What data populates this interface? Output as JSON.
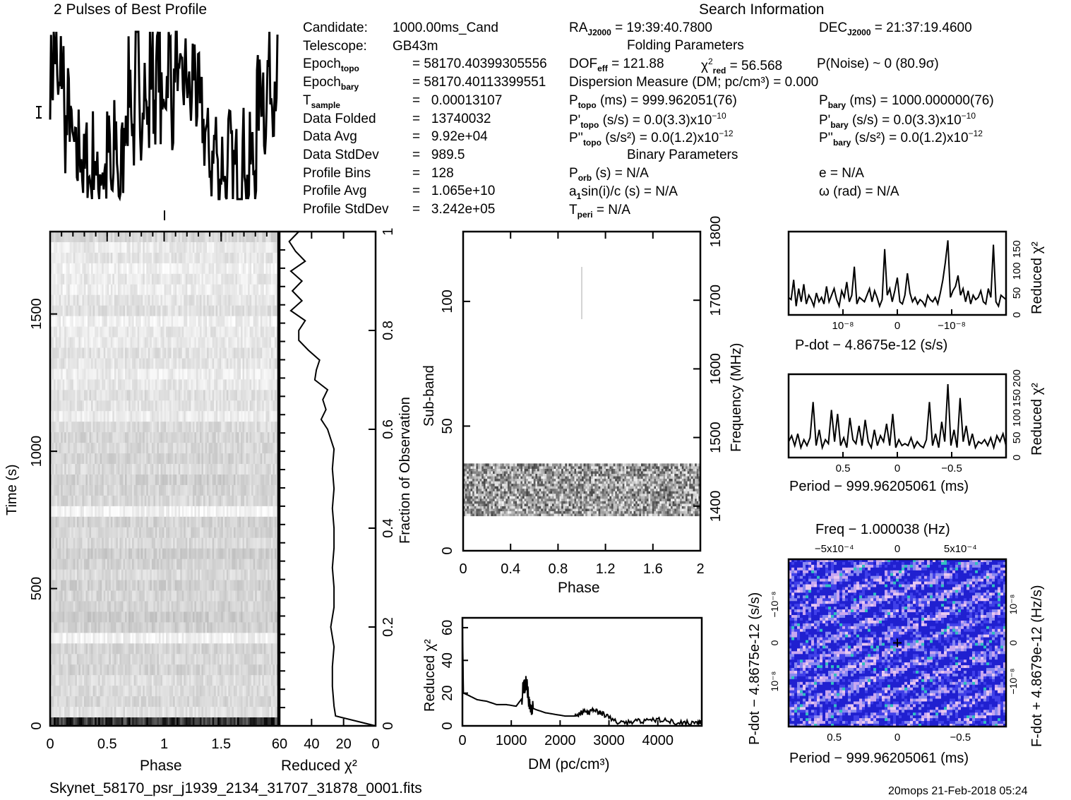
{
  "header": {
    "profile_title": "2 Pulses of Best Profile",
    "search_title": "Search Information",
    "folding_title": "Folding Parameters",
    "binary_title": "Binary Parameters"
  },
  "info_left": [
    {
      "label": "Candidate:",
      "sub": "",
      "value": "1000.00ms_Cand"
    },
    {
      "label": "Telescope:",
      "sub": "",
      "value": "GB43m"
    },
    {
      "label": "Epoch",
      "sub": "topo",
      "value": "= 58170.40399305556"
    },
    {
      "label": "Epoch",
      "sub": "bary",
      "value": "= 58170.40113399551"
    },
    {
      "label": "T",
      "sub": "sample",
      "value": "=   0.00013107"
    },
    {
      "label": "Data Folded",
      "sub": "",
      "value": "=   13740032"
    },
    {
      "label": "Data Avg",
      "sub": "",
      "value": "=   9.92e+04"
    },
    {
      "label": "Data StdDev",
      "sub": "",
      "value": "=   989.5"
    },
    {
      "label": "Profile Bins",
      "sub": "",
      "value": "=   128"
    },
    {
      "label": "Profile Avg",
      "sub": "",
      "value": "=   1.065e+10"
    },
    {
      "label": "Profile StdDev",
      "sub": "",
      "value": "=   3.242e+05"
    }
  ],
  "search_info": {
    "ra": {
      "label": "RA",
      "sub": "J2000",
      "value": "= 19:39:40.7800"
    },
    "dec": {
      "label": "DEC",
      "sub": "J2000",
      "value": "= 21:37:19.4600"
    }
  },
  "folding": {
    "dof": {
      "label": "DOF",
      "sub": "eff",
      "value": "= 121.88"
    },
    "chi2": {
      "label": "χ",
      "sup": "2",
      "sub": "red",
      "value": "= 56.568"
    },
    "noise": "P(Noise) ~ 0    (80.9σ)",
    "dm": "Dispersion Measure (DM; pc/cm³) = 0.000",
    "p_topo": {
      "label": "P",
      "sub": "topo",
      "value": "(ms) =  999.962051(76)"
    },
    "pd_topo": {
      "label": "P'",
      "sub": "topo",
      "value": "(s/s) = 0.0(3.3)x10",
      "exp": "−10"
    },
    "pdd_topo": {
      "label": "P''",
      "sub": "topo",
      "value": "(s/s²) = 0.0(1.2)x10",
      "exp": "−12"
    },
    "p_bary": {
      "label": "P",
      "sub": "bary",
      "value": "(ms) =  1000.000000(76)"
    },
    "pd_bary": {
      "label": "P'",
      "sub": "bary",
      "value": "(s/s) = 0.0(3.3)x10",
      "exp": "−10"
    },
    "pdd_bary": {
      "label": "P''",
      "sub": "bary",
      "value": "(s/s²) = 0.0(1.2)x10",
      "exp": "−12"
    }
  },
  "binary": {
    "porb": {
      "label": "P",
      "sub": "orb",
      "value": "(s) = N/A"
    },
    "asini": {
      "label": "a",
      "sub": "1",
      "value": "sin(i)/c (s) = N/A"
    },
    "tperi": {
      "label": "T",
      "sub": "peri",
      "value": "= N/A"
    },
    "e": "e = N/A",
    "omega": "ω (rad) = N/A"
  },
  "footer": {
    "filename": "Skynet_58170_psr_j1939_2134_31707_31878_0001.fits",
    "stamp": "20mops 21-Feb-2018 05:24"
  },
  "chart_data": [
    {
      "id": "profile",
      "type": "line",
      "title": "2 Pulses of Best Profile",
      "xlabel": "",
      "ylabel": "",
      "x_range": [
        0,
        2
      ],
      "description": "Noisy two-cycle pulse profile, high 0-0.1, low 0.1-0.5, high 0.5-1.0, repeated",
      "values": [
        0.75,
        0.9,
        0.6,
        0.8,
        0.4,
        0.55,
        0.3,
        0.2,
        0.35,
        0.15,
        0.25,
        0.1,
        0.3,
        0.05,
        0.2,
        0.15,
        0.3,
        0.05,
        0.35,
        0.1,
        0.25,
        0.55,
        0.7,
        0.4,
        0.85,
        0.5,
        0.75,
        0.45,
        0.8,
        0.6,
        0.9,
        0.5,
        0.7,
        0.85,
        0.55,
        0.9,
        0.6,
        0.7,
        0.75,
        0.55,
        0.8,
        0.6,
        0.5,
        0.4,
        0.3,
        0.2,
        0.35,
        0.1,
        0.25,
        0.05,
        0.3,
        0.15,
        0.2,
        0.1,
        0.3,
        0.05,
        0.25,
        0.2,
        0.6,
        0.7,
        0.5,
        0.8,
        0.65,
        0.75
      ]
    },
    {
      "id": "time-phase",
      "type": "heatmap",
      "xlabel": "Phase",
      "ylabel": "Time (s)",
      "x_ticks": [
        "0",
        "0.5",
        "1",
        "1.5"
      ],
      "y_ticks": [
        "0",
        "500",
        "1000",
        "1500"
      ],
      "x_range": [
        0,
        2
      ],
      "y_range": [
        0,
        1800
      ],
      "colormap": "grayscale",
      "row_shades": [
        0.15,
        0.08,
        0.1,
        0.06,
        0.09,
        0.07,
        0.1,
        0.12,
        0.06,
        0.09,
        0.08,
        0.11,
        0.1,
        0.07,
        0.09,
        0.12,
        0.1,
        0.08,
        0.14,
        0.16,
        0.15,
        0.17,
        0.14,
        0.18,
        0.16,
        0.15,
        0.05,
        0.17,
        0.16,
        0.15,
        0.19,
        0.17,
        0.14,
        0.18,
        0.16,
        0.17,
        0.2,
        0.18,
        0.05,
        0.16,
        0.15,
        0.17,
        0.13,
        0.14,
        0.15,
        0.12
      ]
    },
    {
      "id": "time-chi2",
      "type": "line",
      "xlabel": "Reduced χ²",
      "ylabel": "Fraction of Observation",
      "x_ticks": [
        "60",
        "40",
        "20",
        "0"
      ],
      "y_ticks": [
        "0",
        "0.2",
        "0.4",
        "0.6",
        "0.8",
        "1"
      ],
      "x_range": [
        60,
        0
      ],
      "y_range": [
        0,
        1
      ],
      "fraction": [
        0,
        0.02,
        0.04,
        0.08,
        0.12,
        0.16,
        0.2,
        0.24,
        0.28,
        0.32,
        0.36,
        0.4,
        0.44,
        0.48,
        0.52,
        0.56,
        0.6,
        0.62,
        0.64,
        0.66,
        0.68,
        0.7,
        0.72,
        0.74,
        0.76,
        0.78,
        0.8,
        0.82,
        0.84,
        0.86,
        0.88,
        0.9,
        0.92,
        0.94,
        0.96,
        0.98,
        1.0
      ],
      "chi2": [
        0,
        25,
        26,
        27,
        27,
        26,
        28,
        26,
        26,
        27,
        26,
        26,
        27,
        26,
        27,
        26,
        30,
        34,
        31,
        33,
        30,
        38,
        37,
        35,
        42,
        48,
        48,
        44,
        53,
        46,
        52,
        46,
        53,
        44,
        50,
        54,
        48
      ]
    },
    {
      "id": "subband-phase",
      "type": "heatmap",
      "xlabel": "Phase",
      "ylabel": "Sub-band",
      "y2label": "Frequency (MHz)",
      "x_ticks": [
        "0",
        "0.4",
        "0.8",
        "1.2",
        "1.6",
        "2"
      ],
      "y_ticks": [
        "0",
        "50",
        "100"
      ],
      "y2_ticks": [
        "1400",
        "1500",
        "1600",
        "1700",
        "1800"
      ],
      "x_range": [
        0,
        2
      ],
      "y_range": [
        0,
        128
      ],
      "active_subbands": [
        14,
        35
      ],
      "colormap": "grayscale"
    },
    {
      "id": "dm-chi2",
      "type": "line",
      "xlabel": "DM (pc/cm³)",
      "ylabel": "Reduced χ²",
      "x_ticks": [
        "0",
        "1000",
        "2000",
        "3000",
        "4000"
      ],
      "y_ticks": [
        "0",
        "20",
        "40",
        "60"
      ],
      "x_range": [
        0,
        4900
      ],
      "y_range": [
        0,
        66
      ],
      "x": [
        0,
        20,
        100,
        300,
        500,
        700,
        900,
        1100,
        1200,
        1250,
        1300,
        1330,
        1370,
        1420,
        1500,
        1700,
        1900,
        2100,
        2300,
        2400,
        2500,
        2600,
        2700,
        2800,
        2900,
        3000,
        3200,
        3400,
        3600,
        3800,
        4000,
        4200,
        4400,
        4600,
        4800,
        4900
      ],
      "y": [
        62,
        20,
        19,
        16,
        15,
        13,
        13,
        12,
        16,
        22,
        27,
        24,
        15,
        11,
        10,
        8,
        7,
        6,
        6,
        7,
        9,
        8,
        10,
        8,
        7,
        5,
        2,
        2,
        3,
        3,
        4,
        3,
        2,
        2,
        2,
        2
      ]
    },
    {
      "id": "pdot-chi2",
      "type": "line",
      "xlabel": "P-dot − 4.8675e-12 (s/s)",
      "ylabel": "Reduced χ²",
      "x_ticks": [
        "10⁻⁸",
        "0",
        "−10⁻⁸"
      ],
      "y_ticks": [
        "0",
        "50",
        "100",
        "150"
      ],
      "y_range": [
        0,
        190
      ],
      "values": [
        40,
        35,
        80,
        20,
        60,
        30,
        70,
        25,
        45,
        35,
        20,
        50,
        30,
        40,
        25,
        65,
        30,
        45,
        60,
        35,
        20,
        55,
        40,
        75,
        30,
        45,
        110,
        25,
        40,
        35,
        30,
        45,
        60,
        30,
        55,
        40,
        20,
        35,
        150,
        45,
        60,
        30,
        55,
        85,
        30,
        25,
        45,
        95,
        50,
        30,
        40,
        25,
        35,
        30,
        20,
        45,
        35,
        30,
        40,
        25,
        50,
        80,
        120,
        170,
        40,
        55,
        65,
        90,
        45,
        60,
        30,
        55,
        25,
        45,
        35,
        40,
        55,
        30,
        25,
        60,
        40,
        160,
        30,
        20,
        45,
        40,
        35
      ]
    },
    {
      "id": "period-chi2",
      "type": "line",
      "xlabel": "Period − 999.96205061 (ms)",
      "ylabel": "Reduced χ²",
      "x_ticks": [
        "0.5",
        "0",
        "−0.5"
      ],
      "y_ticks": [
        "0",
        "50",
        "100",
        "150",
        "200"
      ],
      "y_range": [
        0,
        210
      ],
      "values": [
        40,
        55,
        30,
        60,
        25,
        45,
        30,
        50,
        140,
        30,
        70,
        25,
        45,
        35,
        120,
        40,
        110,
        30,
        50,
        25,
        100,
        45,
        35,
        80,
        30,
        95,
        40,
        25,
        70,
        30,
        55,
        40,
        85,
        30,
        110,
        25,
        45,
        30,
        35,
        30,
        50,
        25,
        40,
        30,
        25,
        45,
        140,
        30,
        60,
        25,
        90,
        40,
        185,
        30,
        70,
        25,
        150,
        40,
        80,
        30,
        60,
        25,
        40,
        35,
        45,
        30,
        50,
        25,
        55,
        40,
        60,
        30
      ]
    },
    {
      "id": "p-pdot-plane",
      "type": "heatmap",
      "title": "Freq − 1.000038 (Hz)",
      "xlabel": "Period − 999.96205061 (ms)",
      "ylabel": "P-dot − 4.8675e-12 (s/s)",
      "y2label": "F-dot + 4.8679e-12 (Hz/s)",
      "x_ticks": [
        "0.5",
        "0",
        "−0.5"
      ],
      "x2_ticks": [
        "−5x10⁻⁴",
        "0",
        "5x10⁻⁴"
      ],
      "y_ticks": [
        "10⁻⁸",
        "0",
        "−10⁻⁸"
      ],
      "y2_ticks": [
        "−10⁻⁸",
        "0",
        "10⁻⁸"
      ],
      "colormap": "purple-blue",
      "colors": [
        "#e8c8f0",
        "#c8a8f0",
        "#8888f0",
        "#4040e8",
        "#2020d0",
        "#30c0c0"
      ],
      "best_marker": [
        0,
        0
      ]
    }
  ]
}
